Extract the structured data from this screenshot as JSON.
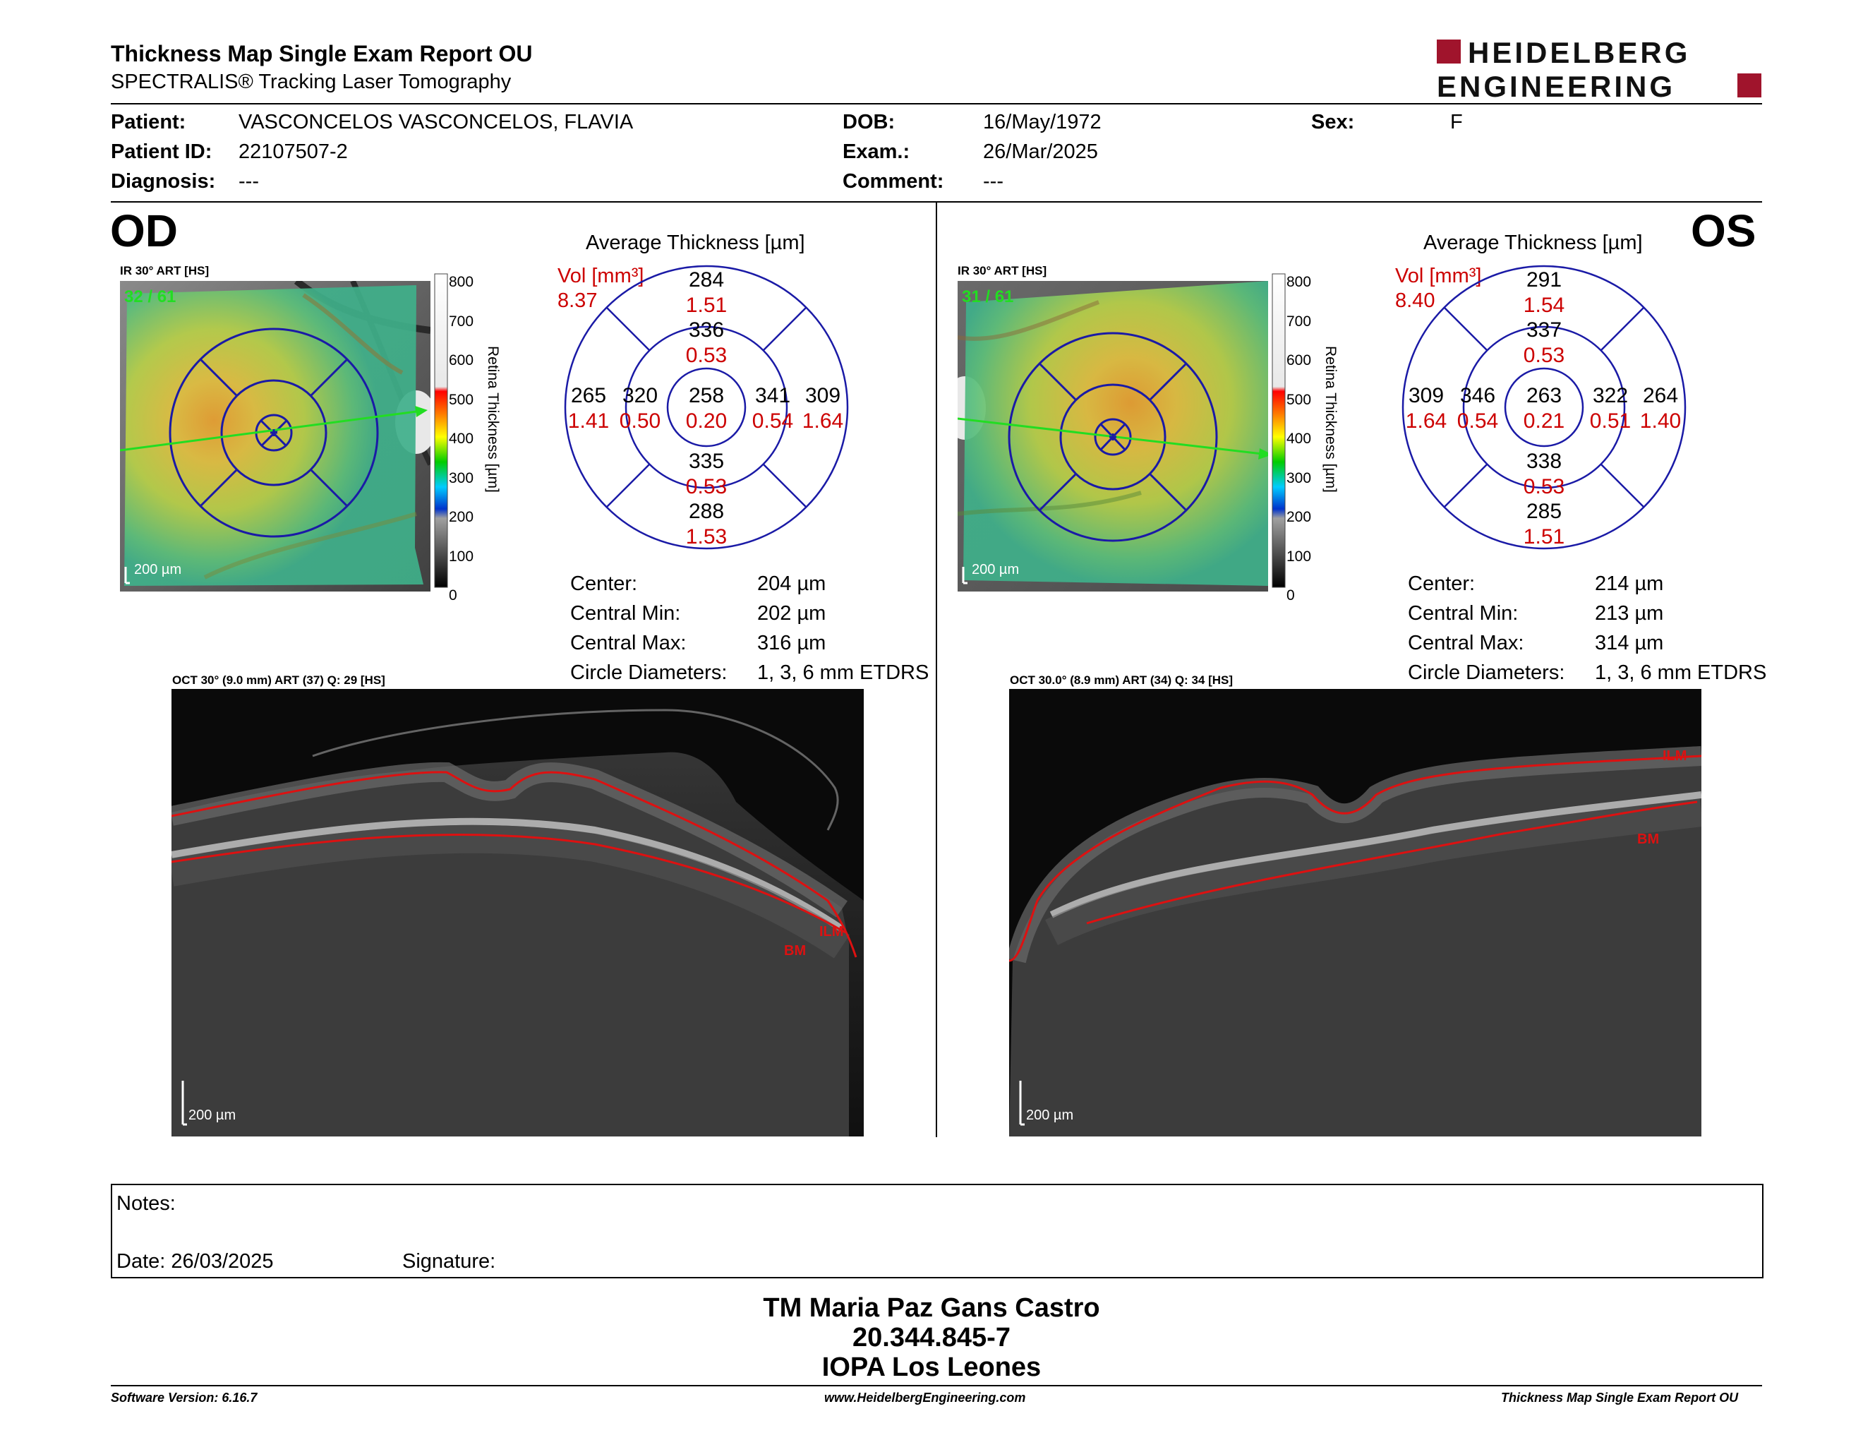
{
  "header": {
    "title": "Thickness Map Single Exam Report OU",
    "subtitle": "SPECTRALIS® Tracking Laser Tomography",
    "logo_line1": "HEIDELBERG",
    "logo_line2": "ENGINEERING"
  },
  "patient": {
    "patient_label": "Patient:",
    "patient_value": "VASCONCELOS VASCONCELOS, FLAVIA",
    "id_label": "Patient ID:",
    "id_value": "22107507-2",
    "diagnosis_label": "Diagnosis:",
    "diagnosis_value": "---",
    "dob_label": "DOB:",
    "dob_value": "16/May/1972",
    "exam_label": "Exam.:",
    "exam_value": "26/Mar/2025",
    "comment_label": "Comment:",
    "comment_value": "---",
    "sex_label": "Sex:",
    "sex_value": "F"
  },
  "colorbar": {
    "ticks": [
      "800",
      "700",
      "600",
      "500",
      "400",
      "300",
      "200",
      "100",
      "0"
    ],
    "label": "Retina  Thickness [µm]"
  },
  "od": {
    "eye": "OD",
    "fundus_label": "IR 30° ART [HS]",
    "frame": "32 / 61",
    "scale": "200 µm",
    "avg_title": "Average Thickness [µm]",
    "vol_label": "Vol [mm³]",
    "vol_value": "8.37",
    "sectors": {
      "outer_sup": {
        "t": "284",
        "v": "1.51"
      },
      "inner_sup": {
        "t": "336",
        "v": "0.53"
      },
      "outer_left": {
        "t": "265",
        "v": "1.41"
      },
      "inner_left": {
        "t": "320",
        "v": "0.50"
      },
      "center": {
        "t": "258",
        "v": "0.20"
      },
      "inner_right": {
        "t": "341",
        "v": "0.54"
      },
      "outer_right": {
        "t": "309",
        "v": "1.64"
      },
      "inner_inf": {
        "t": "335",
        "v": "0.53"
      },
      "outer_inf": {
        "t": "288",
        "v": "1.53"
      }
    },
    "stats": {
      "center_label": "Center:",
      "center_value": "204 µm",
      "min_label": "Central Min:",
      "min_value": "202 µm",
      "max_label": "Central Max:",
      "max_value": "316 µm",
      "diam_label": "Circle Diameters:",
      "diam_value": "1, 3, 6 mm ETDRS"
    },
    "oct_label": "OCT 30° (9.0 mm) ART (37) Q: 29 [HS]",
    "oct_scale": "200 µm",
    "ilm": "ILM",
    "bm": "BM"
  },
  "os": {
    "eye": "OS",
    "fundus_label": "IR 30° ART [HS]",
    "frame": "31 / 61",
    "scale": "200 µm",
    "avg_title": "Average Thickness [µm]",
    "vol_label": "Vol [mm³]",
    "vol_value": "8.40",
    "sectors": {
      "outer_sup": {
        "t": "291",
        "v": "1.54"
      },
      "inner_sup": {
        "t": "337",
        "v": "0.53"
      },
      "outer_left": {
        "t": "309",
        "v": "1.64"
      },
      "inner_left": {
        "t": "346",
        "v": "0.54"
      },
      "center": {
        "t": "263",
        "v": "0.21"
      },
      "inner_right": {
        "t": "322",
        "v": "0.51"
      },
      "outer_right": {
        "t": "264",
        "v": "1.40"
      },
      "inner_inf": {
        "t": "338",
        "v": "0.53"
      },
      "outer_inf": {
        "t": "285",
        "v": "1.51"
      }
    },
    "stats": {
      "center_label": "Center:",
      "center_value": "214 µm",
      "min_label": "Central Min:",
      "min_value": "213 µm",
      "max_label": "Central Max:",
      "max_value": "314 µm",
      "diam_label": "Circle Diameters:",
      "diam_value": "1, 3, 6 mm ETDRS"
    },
    "oct_label": "OCT 30.0° (8.9 mm) ART (34) Q: 34 [HS]",
    "oct_scale": "200 µm",
    "ilm": "ILM",
    "bm": "BM"
  },
  "notes": {
    "notes_label": "Notes:",
    "date_label": "Date: 26/03/2025",
    "signature_label": "Signature:"
  },
  "signatory": {
    "name": "TM Maria Paz Gans Castro",
    "rut": "20.344.845-7",
    "institution": "IOPA Los Leones"
  },
  "footer": {
    "software": "Software Version: 6.16.7",
    "website": "www.HeidelbergEngineering.com",
    "report": "Thickness Map Single Exam Report OU"
  },
  "colors": {
    "accent_red": "#a0142c",
    "sector_red": "#cc0000",
    "grid_blue": "#1a1aa6"
  }
}
